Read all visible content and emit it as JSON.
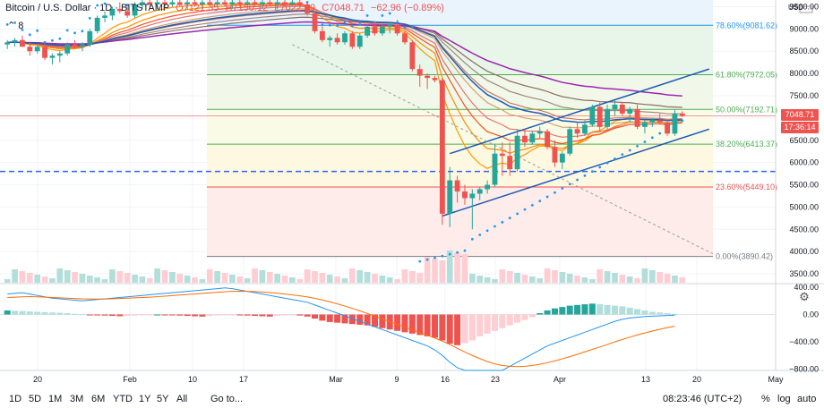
{
  "header": {
    "symbol": "Bitcoin / U.S. Dollar",
    "interval": "1D",
    "exchange": "BITSTAMP",
    "open": "O7121.35",
    "high": "H7150.12",
    "low": "L7022.39",
    "close": "C7048.71",
    "change": "−62.96 (−0.89%)",
    "indicator_count": "8"
  },
  "price_labels": {
    "last_price": "7048.71",
    "countdown": "17:36:14",
    "usd": "USD"
  },
  "bottom_bar": {
    "ranges": [
      "1D",
      "5D",
      "1M",
      "3M",
      "6M",
      "YTD",
      "1Y",
      "5Y",
      "All"
    ],
    "goto": "Go to...",
    "clock": "08:23:46 (UTC+2)",
    "percent": "%",
    "log": "log",
    "auto": "auto"
  },
  "colors": {
    "up": "#26a69a",
    "down": "#ef5350",
    "fib_blue": "#2196f3",
    "fib_green": "#4caf50",
    "fib_red": "#ef5350"
  },
  "chart_data": [
    {
      "type": "candlestick",
      "title": "Bitcoin / U.S. Dollar, 1D, BITSTAMP",
      "x_tick_labels": [
        "20",
        "Feb",
        "10",
        "17",
        "Mar",
        "9",
        "16",
        "23",
        "Apr",
        "13",
        "20",
        "May"
      ],
      "y_tick_labels": [
        "9500.00",
        "9000.00",
        "8500.00",
        "8000.00",
        "7500.00",
        "7000.00",
        "6500.00",
        "6000.00",
        "5500.00",
        "5000.00",
        "4500.00",
        "4000.00",
        "3500.00"
      ],
      "ylim": [
        3300,
        9650
      ],
      "fib_levels": [
        {
          "label": "78.60%(9081.62)",
          "value": 9081.62
        },
        {
          "label": "61.80%(7972.05)",
          "value": 7972.05
        },
        {
          "label": "50.00%(7192.71)",
          "value": 7192.71
        },
        {
          "label": "38.20%(6413.37)",
          "value": 6413.37
        },
        {
          "label": "23.60%(5449.10)",
          "value": 5449.1
        },
        {
          "label": "0.00%(3890.42)",
          "value": 3890.42
        }
      ],
      "candles": [
        [
          8650,
          8750,
          8550,
          8700
        ],
        [
          8700,
          8800,
          8600,
          8750
        ],
        [
          8750,
          8850,
          8650,
          8600
        ],
        [
          8600,
          8700,
          8400,
          8500
        ],
        [
          8500,
          8650,
          8450,
          8600
        ],
        [
          8600,
          8700,
          8300,
          8350
        ],
        [
          8350,
          8450,
          8200,
          8400
        ],
        [
          8400,
          8500,
          8250,
          8450
        ],
        [
          8450,
          8700,
          8400,
          8650
        ],
        [
          8650,
          8750,
          8550,
          8600
        ],
        [
          8600,
          8700,
          8500,
          8650
        ],
        [
          8650,
          9000,
          8600,
          8950
        ],
        [
          8950,
          9300,
          8900,
          9250
        ],
        [
          9250,
          9400,
          9150,
          9300
        ],
        [
          9300,
          9500,
          9200,
          9450
        ],
        [
          9450,
          9600,
          9350,
          9400
        ],
        [
          9400,
          9500,
          9250,
          9300
        ],
        [
          9300,
          9600,
          9250,
          9550
        ],
        [
          9550,
          9650,
          9450,
          9600
        ],
        [
          9600,
          9650,
          9500,
          9550
        ],
        [
          9550,
          9650,
          9450,
          9600
        ],
        [
          9600,
          9650,
          9500,
          9550
        ],
        [
          9550,
          9650,
          9500,
          9600
        ],
        [
          9600,
          9650,
          9500,
          9550
        ],
        [
          9550,
          9650,
          9450,
          9600
        ],
        [
          9600,
          9650,
          9500,
          9550
        ],
        [
          9550,
          9650,
          9450,
          9600
        ],
        [
          9600,
          9650,
          9500,
          9550
        ],
        [
          9550,
          9650,
          9500,
          9600
        ],
        [
          9600,
          9650,
          9500,
          9550
        ],
        [
          9550,
          9650,
          9450,
          9600
        ],
        [
          9600,
          9650,
          9500,
          9550
        ],
        [
          9550,
          9650,
          9500,
          9600
        ],
        [
          9600,
          9650,
          9500,
          9550
        ],
        [
          9550,
          9650,
          9450,
          9600
        ],
        [
          9600,
          9650,
          9500,
          9550
        ],
        [
          9550,
          9650,
          9450,
          9600
        ],
        [
          9600,
          9650,
          9500,
          9550
        ],
        [
          9550,
          9650,
          9500,
          9600
        ],
        [
          9600,
          9650,
          9500,
          9550
        ],
        [
          9550,
          9600,
          9300,
          9350
        ],
        [
          9350,
          9400,
          8900,
          8950
        ],
        [
          8950,
          9050,
          8700,
          8750
        ],
        [
          8750,
          8850,
          8600,
          8800
        ],
        [
          8800,
          8900,
          8650,
          8700
        ],
        [
          8700,
          8950,
          8650,
          8900
        ],
        [
          8900,
          8950,
          8550,
          8600
        ],
        [
          8600,
          8900,
          8550,
          8850
        ],
        [
          8850,
          9100,
          8800,
          9050
        ],
        [
          9050,
          9150,
          8850,
          8900
        ],
        [
          8900,
          9100,
          8850,
          9050
        ],
        [
          9050,
          9150,
          8900,
          9100
        ],
        [
          9100,
          9200,
          8850,
          8900
        ],
        [
          8900,
          8950,
          8650,
          8700
        ],
        [
          8700,
          8750,
          8050,
          8100
        ],
        [
          8100,
          8200,
          7700,
          7950
        ],
        [
          7950,
          8000,
          7650,
          7900
        ],
        [
          7900,
          7950,
          7800,
          7850
        ],
        [
          7850,
          7900,
          4600,
          4850
        ],
        [
          4850,
          5900,
          4550,
          5600
        ],
        [
          5600,
          5700,
          5100,
          5350
        ],
        [
          5350,
          5500,
          5050,
          5200
        ],
        [
          5200,
          5400,
          4500,
          5300
        ],
        [
          5300,
          5450,
          5150,
          5400
        ],
        [
          5400,
          5600,
          5300,
          5500
        ],
        [
          5500,
          6400,
          5450,
          6200
        ],
        [
          6200,
          6450,
          5700,
          6150
        ],
        [
          6150,
          6450,
          5700,
          5850
        ],
        [
          5850,
          6750,
          5800,
          6600
        ],
        [
          6600,
          6750,
          6350,
          6450
        ],
        [
          6450,
          6700,
          6400,
          6650
        ],
        [
          6650,
          6800,
          6550,
          6700
        ],
        [
          6700,
          6750,
          6300,
          6350
        ],
        [
          6350,
          6500,
          5900,
          6000
        ],
        [
          6000,
          6250,
          5850,
          6200
        ],
        [
          6200,
          6800,
          6150,
          6750
        ],
        [
          6750,
          6900,
          6550,
          6650
        ],
        [
          6650,
          6950,
          6600,
          6850
        ],
        [
          6850,
          7300,
          6800,
          7250
        ],
        [
          7250,
          7350,
          6700,
          6800
        ],
        [
          6800,
          7300,
          6750,
          7200
        ],
        [
          7200,
          7400,
          7050,
          7300
        ],
        [
          7300,
          7350,
          7050,
          7100
        ],
        [
          7100,
          7250,
          6900,
          7200
        ],
        [
          7200,
          7300,
          6750,
          6800
        ],
        [
          6800,
          6950,
          6650,
          6900
        ],
        [
          6900,
          7000,
          6800,
          6950
        ],
        [
          6950,
          7100,
          6850,
          6900
        ],
        [
          6900,
          6950,
          6600,
          6650
        ],
        [
          6650,
          7200,
          6600,
          7100
        ],
        [
          7100,
          7150,
          7020,
          7049
        ]
      ]
    },
    {
      "type": "macd",
      "y_tick_labels": [
        "400.00",
        "0.00",
        "−400.00",
        "−800.00"
      ],
      "ylim": [
        -820,
        440
      ],
      "histogram": [
        60,
        55,
        50,
        45,
        40,
        35,
        30,
        25,
        20,
        10,
        5,
        -5,
        -10,
        -15,
        -20,
        -25,
        -20,
        -15,
        -10,
        -5,
        0,
        -5,
        -10,
        -15,
        -20,
        -25,
        -30,
        -20,
        -15,
        -10,
        -5,
        -10,
        -15,
        -20,
        -25,
        -30,
        -20,
        -10,
        -5,
        -15,
        -30,
        -60,
        -90,
        -110,
        -120,
        -130,
        -140,
        -150,
        -160,
        -180,
        -200,
        -220,
        -240,
        -260,
        -280,
        -300,
        -320,
        -340,
        -380,
        -430,
        -450,
        -420,
        -380,
        -320,
        -280,
        -240,
        -200,
        -160,
        -120,
        -80,
        -40,
        20,
        60,
        90,
        110,
        130,
        140,
        150,
        160,
        150,
        140,
        130,
        120,
        100,
        80,
        60,
        40,
        30,
        20,
        10
      ],
      "macd_line": [
        300,
        310,
        320,
        300,
        280,
        260,
        240,
        230,
        220,
        210,
        200,
        210,
        220,
        230,
        240,
        250,
        260,
        270,
        280,
        290,
        300,
        310,
        320,
        330,
        340,
        350,
        360,
        370,
        380,
        390,
        380,
        360,
        340,
        320,
        300,
        280,
        260,
        240,
        220,
        200,
        180,
        140,
        100,
        60,
        20,
        -20,
        -60,
        -100,
        -140,
        -180,
        -220,
        -260,
        -300,
        -340,
        -380,
        -420,
        -460,
        -520,
        -600,
        -700,
        -780,
        -820,
        -840,
        -860,
        -880,
        -860,
        -820,
        -760,
        -700,
        -640,
        -580,
        -520,
        -460,
        -420,
        -380,
        -340,
        -300,
        -260,
        -220,
        -180,
        -140,
        -100,
        -70,
        -50,
        -40,
        -30,
        -25,
        -20,
        -15,
        -10
      ],
      "signal_line": [
        250,
        255,
        260,
        262,
        260,
        255,
        250,
        245,
        240,
        235,
        230,
        228,
        226,
        228,
        230,
        235,
        240,
        245,
        250,
        255,
        262,
        270,
        278,
        286,
        294,
        302,
        310,
        318,
        326,
        334,
        340,
        342,
        340,
        336,
        330,
        322,
        312,
        300,
        288,
        274,
        258,
        238,
        214,
        186,
        156,
        124,
        90,
        54,
        16,
        -24,
        -64,
        -104,
        -144,
        -184,
        -224,
        -264,
        -304,
        -344,
        -390,
        -440,
        -496,
        -550,
        -600,
        -646,
        -690,
        -724,
        -748,
        -760,
        -764,
        -760,
        -748,
        -730,
        -706,
        -680,
        -650,
        -618,
        -584,
        -548,
        -512,
        -476,
        -440,
        -402,
        -366,
        -332,
        -300,
        -270,
        -242,
        -216,
        -192,
        -170
      ]
    }
  ]
}
